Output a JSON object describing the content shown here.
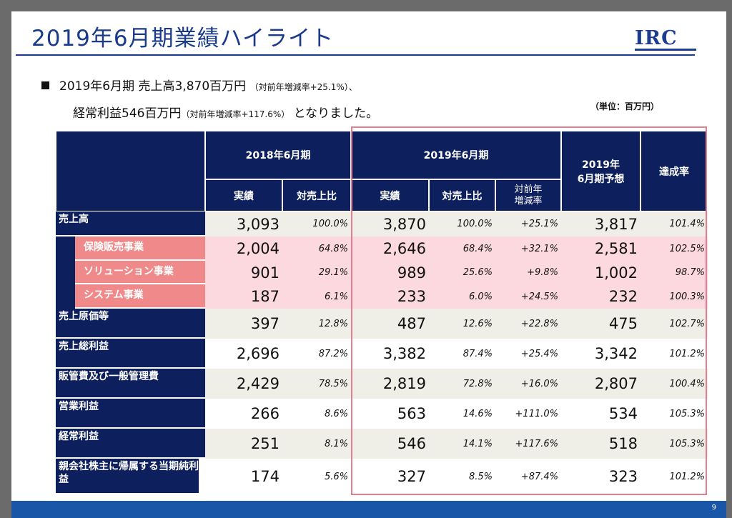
{
  "title": "2019年6月期業績ハイライト",
  "logo": "IRC",
  "summary": {
    "line1_main": "2019年6月期  売上高3,870百万円",
    "line1_note": "（対前年増減率+25.1%）、",
    "line2_main": "経常利益546百万円",
    "line2_note": "（対前年増減率+117.6%）",
    "line2_tail": "となりました。"
  },
  "unit": "（単位：百万円）",
  "headers": {
    "fy2018": "2018年6月期",
    "fy2019": "2019年6月期",
    "forecast": "2019年\n6月期予想",
    "achievement": "達成率",
    "actual": "実績",
    "ratio_to_sales": "対売上比",
    "yoy": "対前年\n増減率"
  },
  "rows": [
    {
      "label": "売上高",
      "a2018": "3,093",
      "r2018": "100.0%",
      "a2019": "3,870",
      "r2019": "100.0%",
      "yoy": "+25.1%",
      "forecast": "3,817",
      "ach": "101.4%"
    },
    {
      "label": "保険販売事業",
      "a2018": "2,004",
      "r2018": "64.8%",
      "a2019": "2,646",
      "r2019": "68.4%",
      "yoy": "+32.1%",
      "forecast": "2,581",
      "ach": "102.5%"
    },
    {
      "label": "ソリューション事業",
      "a2018": "901",
      "r2018": "29.1%",
      "a2019": "989",
      "r2019": "25.6%",
      "yoy": "+9.8%",
      "forecast": "1,002",
      "ach": "98.7%"
    },
    {
      "label": "システム事業",
      "a2018": "187",
      "r2018": "6.1%",
      "a2019": "233",
      "r2019": "6.0%",
      "yoy": "+24.5%",
      "forecast": "232",
      "ach": "100.3%"
    },
    {
      "label": "売上原価等",
      "a2018": "397",
      "r2018": "12.8%",
      "a2019": "487",
      "r2019": "12.6%",
      "yoy": "+22.8%",
      "forecast": "475",
      "ach": "102.7%"
    },
    {
      "label": "売上総利益",
      "a2018": "2,696",
      "r2018": "87.2%",
      "a2019": "3,382",
      "r2019": "87.4%",
      "yoy": "+25.4%",
      "forecast": "3,342",
      "ach": "101.2%"
    },
    {
      "label": "販管費及び一般管理費",
      "a2018": "2,429",
      "r2018": "78.5%",
      "a2019": "2,819",
      "r2019": "72.8%",
      "yoy": "+16.0%",
      "forecast": "2,807",
      "ach": "100.4%"
    },
    {
      "label": "営業利益",
      "a2018": "266",
      "r2018": "8.6%",
      "a2019": "563",
      "r2019": "14.6%",
      "yoy": "+111.0%",
      "forecast": "534",
      "ach": "105.3%"
    },
    {
      "label": "経常利益",
      "a2018": "251",
      "r2018": "8.1%",
      "a2019": "546",
      "r2019": "14.1%",
      "yoy": "+117.6%",
      "forecast": "518",
      "ach": "105.3%"
    },
    {
      "label": "親会社株主に帰属する当期純利益",
      "a2018": "174",
      "r2018": "5.6%",
      "a2019": "327",
      "r2019": "8.5%",
      "yoy": "+87.4%",
      "forecast": "323",
      "ach": "101.2%"
    }
  ],
  "page_number": "9"
}
